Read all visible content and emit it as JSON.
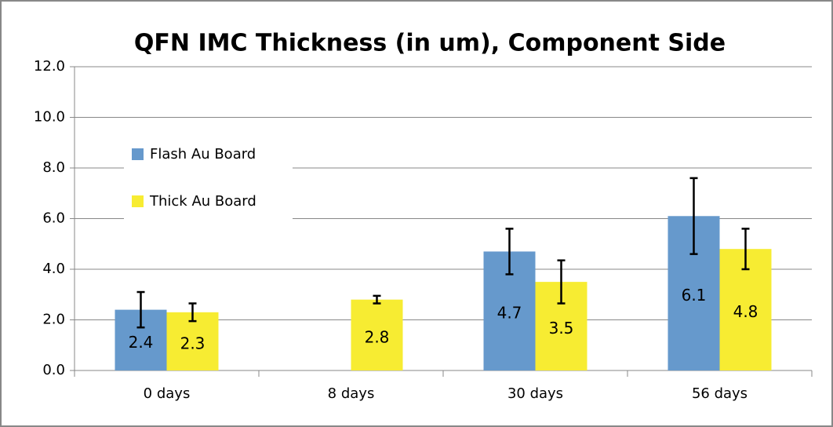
{
  "chart_data": {
    "type": "bar",
    "title": "QFN IMC Thickness (in um), Component Side",
    "categories": [
      "0 days",
      "8 days",
      "30 days",
      "56 days"
    ],
    "series": [
      {
        "name": "Flash Au Board",
        "color": "#6699cc",
        "values": [
          2.4,
          null,
          4.7,
          6.1
        ],
        "errors": [
          0.7,
          null,
          0.9,
          1.5
        ]
      },
      {
        "name": "Thick Au Board",
        "color": "#f7ec32",
        "values": [
          2.3,
          2.8,
          3.5,
          4.8
        ],
        "errors": [
          0.35,
          0.15,
          0.85,
          0.8
        ]
      }
    ],
    "ylim": [
      0,
      12
    ],
    "yticks": [
      {
        "value": 0,
        "label": "0.0"
      },
      {
        "value": 2,
        "label": "2.0"
      },
      {
        "value": 4,
        "label": "4.0"
      },
      {
        "value": 6,
        "label": "6.0"
      },
      {
        "value": 8,
        "label": "8.0"
      },
      {
        "value": 10,
        "label": "10.0"
      },
      {
        "value": 12,
        "label": "12.0"
      }
    ],
    "grid": true,
    "legend": "upper left"
  }
}
